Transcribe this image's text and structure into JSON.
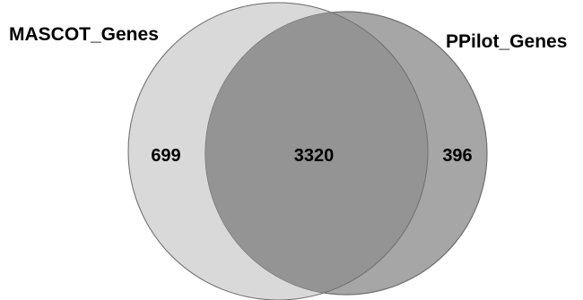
{
  "venn": {
    "sets": [
      {
        "name": "MASCOT_Genes",
        "fill": "#d9d9d9",
        "stroke": "#bdbdbd"
      },
      {
        "name": "PPilot_Genes",
        "fill": "#a6a6a6",
        "stroke": "#6f6f6f"
      }
    ],
    "overlap_fill": "#949494",
    "counts": {
      "only_first": "699",
      "intersection": "3320",
      "only_second": "396"
    }
  }
}
